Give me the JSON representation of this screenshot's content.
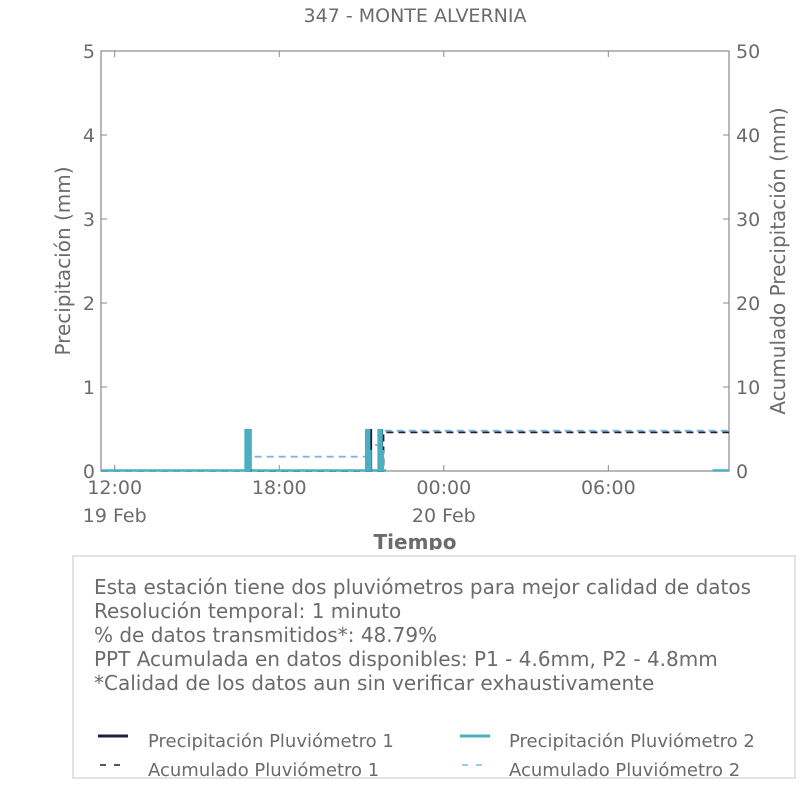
{
  "chart_data": {
    "type": "line",
    "title": "347 - MONTE ALVERNIA",
    "xlabel": "Tiempo",
    "ylabel": "Precipitación (mm)",
    "y2label": "Acumulado Precipitación (mm)",
    "ylim": [
      0,
      5
    ],
    "y2lim": [
      0,
      50
    ],
    "yticks": [
      "0",
      "1",
      "2",
      "3",
      "4",
      "5"
    ],
    "y2ticks": [
      "0",
      "10",
      "20",
      "30",
      "40",
      "50"
    ],
    "xlim_hours": [
      -0.5,
      22.4
    ],
    "xticks": [
      {
        "hour": 0,
        "label": "12:00",
        "sublabel": "19 Feb"
      },
      {
        "hour": 6,
        "label": "18:00",
        "sublabel": ""
      },
      {
        "hour": 12,
        "label": "00:00",
        "sublabel": "20 Feb"
      },
      {
        "hour": 18,
        "label": "06:00",
        "sublabel": ""
      }
    ],
    "grid": false,
    "series": [
      {
        "name": "Precipitación Pluviómetro 1",
        "axis": "left",
        "color": "#1b1f3b",
        "x": [
          4.9,
          4.95,
          9.3,
          9.35,
          9.7,
          9.75
        ],
        "values": [
          0.5,
          0.5,
          0.5,
          0.5,
          0.5,
          0.5
        ]
      },
      {
        "name": "Precipitación Pluviómetro 2",
        "axis": "left",
        "color": "#4ab0c1",
        "x": [
          4.8,
          4.9,
          9.2,
          9.25,
          9.3,
          9.65,
          9.7,
          9.75
        ],
        "values": [
          0.5,
          0.5,
          0.5,
          0.5,
          0.25,
          0.5,
          0.5,
          0.25
        ]
      },
      {
        "name": "Acumulado Pluviómetro 1",
        "axis": "right",
        "color": "#1b1f3b",
        "x": [
          -0.5,
          4.95,
          4.95,
          9.8,
          9.8,
          22.4
        ],
        "values": [
          0,
          0,
          0,
          0,
          4.6,
          4.6
        ]
      },
      {
        "name": "Acumulado Pluviómetro 2",
        "axis": "right",
        "color": "#4ab0c1",
        "x": [
          -0.5,
          4.85,
          4.85,
          9.2,
          9.2,
          9.75,
          9.75,
          22.4
        ],
        "values": [
          0,
          0,
          1.7,
          1.7,
          3.1,
          3.1,
          4.8,
          4.8
        ]
      }
    ]
  },
  "info": {
    "line1": "Esta estación tiene dos pluviómetros para mejor calidad de datos",
    "line2": "Resolución temporal: 1 minuto",
    "line3": "% de datos transmitidos*: 48.79%",
    "line4": "PPT Acumulada en datos disponibles: P1 - 4.6mm, P2 - 4.8mm",
    "line5": "*Calidad de los datos aun sin verificar exhaustivamente"
  },
  "legend": [
    {
      "label": "Precipitación Pluviómetro 1",
      "style": "solid",
      "color": "#1b1f3b"
    },
    {
      "label": "Precipitación Pluviómetro 2",
      "style": "solid",
      "color": "#4ab0c1"
    },
    {
      "label": "Acumulado Pluviómetro 1",
      "style": "dashed",
      "color": "#1b1f3b"
    },
    {
      "label": "Acumulado Pluviómetro 2",
      "style": "dashed",
      "color": "#7fb7d8"
    }
  ]
}
